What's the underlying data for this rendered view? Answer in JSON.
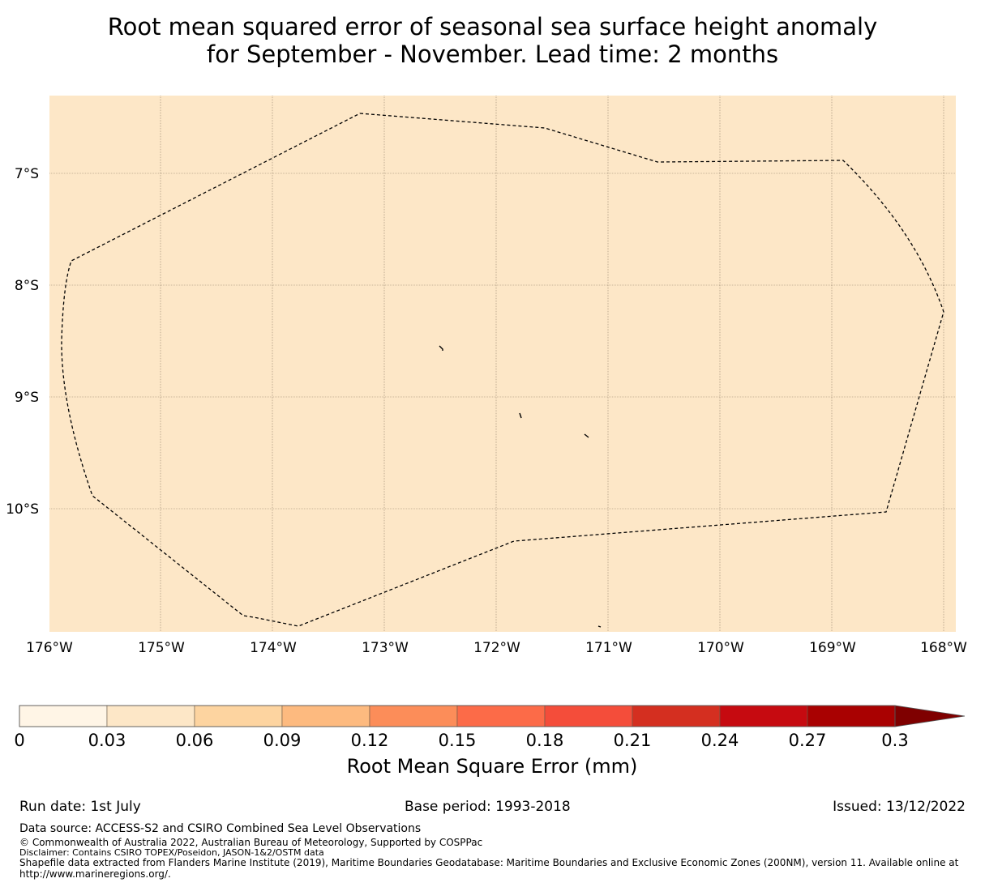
{
  "title": {
    "line1": "Root mean squared error of seasonal sea surface height anomaly",
    "line2": "for September - November. Lead time: 2 months"
  },
  "map": {
    "background_color": "#fde7c7",
    "lat_labels": [
      "7°S",
      "8°S",
      "9°S",
      "10°S"
    ],
    "lon_labels": [
      "176°W",
      "175°W",
      "174°W",
      "173°W",
      "172°W",
      "171°W",
      "170°W",
      "169°W",
      "168°W"
    ],
    "boundary_style": "dashed",
    "gridlines": true
  },
  "colorbar": {
    "label": "Root Mean Square Error (mm)",
    "ticks": [
      "0",
      "0.03",
      "0.06",
      "0.09",
      "0.12",
      "0.15",
      "0.18",
      "0.21",
      "0.24",
      "0.27",
      "0.3"
    ],
    "colors": [
      "#fff5e6",
      "#fde7c7",
      "#fdd4a0",
      "#fdba7f",
      "#fc8d59",
      "#fc6b48",
      "#f44d3a",
      "#d42f20",
      "#c60a10",
      "#a90101",
      "#7f0000"
    ],
    "extend": "max"
  },
  "footer": {
    "run_date": "Run date: 1st July",
    "base_period": "Base period: 1993-2018",
    "issued": "Issued: 13/12/2022",
    "data_source": "Data source: ACCESS-S2 and CSIRO Combined Sea Level Observations",
    "copyright": "© Commonwealth of Australia 2022, Australian Bureau of Meteorology, Supported by COSPPac",
    "disclaimer": "Disclaimer: Contains CSIRO TOPEX/Poseidon, JASON-1&2/OSTM data",
    "shapefile_1": "Shapefile data extracted from Flanders Marine Institute (2019), Maritime Boundaries Geodatabase: Maritime Boundaries and Exclusive Economic Zones (200NM), version 11. Available online at",
    "shapefile_2": "http://www.marineregions.org/."
  }
}
